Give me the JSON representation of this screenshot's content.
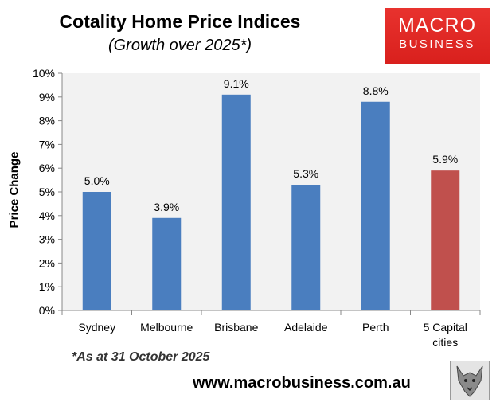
{
  "title": "Cotality Home Price Indices",
  "subtitle": "(Growth over 2025*)",
  "logo": {
    "line1": "MACRO",
    "line2": "BUSINESS"
  },
  "footnote": "*As at 31 October 2025",
  "website": "www.macrobusiness.com.au",
  "colors": {
    "bar": "#4a7ebf",
    "highlight_bar": "#c0504d",
    "plot_bg": "#f2f2f2",
    "logo": "#e0261f"
  },
  "chart_data": {
    "type": "bar",
    "categories": [
      "Sydney",
      "Melbourne",
      "Brisbane",
      "Adelaide",
      "Perth",
      "5 Capital\ncities"
    ],
    "values": [
      5.0,
      3.9,
      9.1,
      5.3,
      8.8,
      5.9
    ],
    "data_labels": [
      "5.0%",
      "3.9%",
      "9.1%",
      "5.3%",
      "8.8%",
      "5.9%"
    ],
    "highlight_index": 5,
    "ylabel": "Price Change",
    "ylim": [
      0,
      10
    ],
    "yticks": [
      "0%",
      "1%",
      "2%",
      "3%",
      "4%",
      "5%",
      "6%",
      "7%",
      "8%",
      "9%",
      "10%"
    ],
    "grid": false,
    "legend": "none"
  }
}
